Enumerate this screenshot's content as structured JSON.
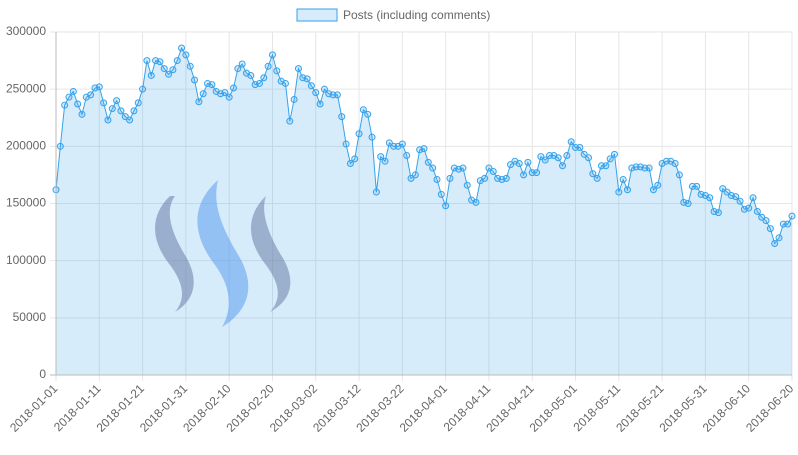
{
  "chart_data": {
    "type": "line",
    "categories": [
      "2018-01-01",
      null,
      null,
      null,
      null,
      null,
      null,
      null,
      null,
      null,
      "2018-01-11",
      null,
      null,
      null,
      null,
      null,
      null,
      null,
      null,
      null,
      "2018-01-21",
      null,
      null,
      null,
      null,
      null,
      null,
      null,
      null,
      null,
      "2018-01-31",
      null,
      null,
      null,
      null,
      null,
      null,
      null,
      null,
      null,
      "2018-02-10",
      null,
      null,
      null,
      null,
      null,
      null,
      null,
      null,
      null,
      "2018-02-20",
      null,
      null,
      null,
      null,
      null,
      null,
      null,
      null,
      null,
      "2018-03-02",
      null,
      null,
      null,
      null,
      null,
      null,
      null,
      null,
      null,
      "2018-03-12",
      null,
      null,
      null,
      null,
      null,
      null,
      null,
      null,
      null,
      "2018-03-22",
      null,
      null,
      null,
      null,
      null,
      null,
      null,
      null,
      null,
      "2018-04-01",
      null,
      null,
      null,
      null,
      null,
      null,
      null,
      null,
      null,
      "2018-04-11",
      null,
      null,
      null,
      null,
      null,
      null,
      null,
      null,
      null,
      "2018-04-21",
      null,
      null,
      null,
      null,
      null,
      null,
      null,
      null,
      null,
      "2018-05-01",
      null,
      null,
      null,
      null,
      null,
      null,
      null,
      null,
      null,
      "2018-05-11",
      null,
      null,
      null,
      null,
      null,
      null,
      null,
      null,
      null,
      "2018-05-21",
      null,
      null,
      null,
      null,
      null,
      null,
      null,
      null,
      null,
      "2018-05-31",
      null,
      null,
      null,
      null,
      null,
      null,
      null,
      null,
      null,
      "2018-06-10",
      null,
      null,
      null,
      null,
      null,
      null,
      null,
      null,
      null,
      "2018-06-20"
    ],
    "series": [
      {
        "name": "Posts (including comments)",
        "color": "#36a2eb",
        "values": [
          162000,
          200000,
          236000,
          243000,
          248000,
          237000,
          228000,
          243000,
          245000,
          251000,
          252000,
          238000,
          223000,
          233000,
          240000,
          231000,
          226000,
          223000,
          231000,
          238000,
          250000,
          275000,
          262000,
          275000,
          274000,
          268000,
          263000,
          267000,
          275000,
          286000,
          280000,
          270000,
          258000,
          239000,
          246000,
          255000,
          254000,
          248000,
          246000,
          247000,
          243000,
          251000,
          268000,
          272000,
          264000,
          262000,
          254000,
          255000,
          260000,
          270000,
          280000,
          266000,
          257000,
          255000,
          222000,
          241000,
          268000,
          260000,
          259000,
          253000,
          247000,
          237000,
          250000,
          246000,
          245000,
          245000,
          226000,
          202000,
          185000,
          189000,
          211000,
          232000,
          228000,
          208000,
          160000,
          191000,
          187000,
          203000,
          200000,
          200000,
          202000,
          192000,
          172000,
          175000,
          197000,
          198000,
          186000,
          181000,
          171000,
          158000,
          148000,
          172000,
          181000,
          180000,
          181000,
          166000,
          153000,
          151000,
          170000,
          172000,
          181000,
          178000,
          172000,
          171000,
          172000,
          184000,
          187000,
          185000,
          175000,
          186000,
          177000,
          177000,
          191000,
          188000,
          192000,
          192000,
          190000,
          183000,
          192000,
          204000,
          199000,
          199000,
          193000,
          190000,
          176000,
          172000,
          183000,
          183000,
          189000,
          193000,
          160000,
          171000,
          162000,
          181000,
          182000,
          182000,
          181000,
          181000,
          162000,
          166000,
          185000,
          187000,
          187000,
          185000,
          175000,
          151000,
          150000,
          165000,
          165000,
          158000,
          157000,
          155000,
          143000,
          142000,
          163000,
          160000,
          157000,
          156000,
          152000,
          145000,
          146000,
          155000,
          143000,
          138000,
          135000,
          128000,
          115000,
          120000,
          132000,
          132000,
          139000
        ]
      }
    ],
    "ylim": [
      0,
      300000
    ],
    "yticks": [
      0,
      50000,
      100000,
      150000,
      200000,
      250000,
      300000
    ],
    "grid": true,
    "legend": "top"
  }
}
